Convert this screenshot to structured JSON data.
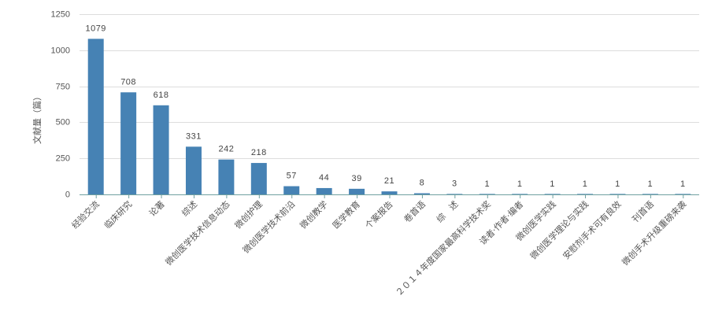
{
  "chart_data": {
    "type": "bar",
    "title": "",
    "xlabel": "",
    "ylabel": "文献量（篇）",
    "ylim": [
      0,
      1250
    ],
    "yticks": [
      0,
      250,
      500,
      750,
      1000,
      1250
    ],
    "grid": true,
    "legend": "none",
    "bar_color": "#4682b4",
    "categories": [
      "经验交流",
      "临床研究",
      "论著",
      "综述",
      "微创医学技术信息动态",
      "微创护理",
      "微创医学技术前沿",
      "微创教学",
      "医学教育",
      "个案报告",
      "卷首语",
      "综　述",
      "２０１４年度国家最高科学技术奖",
      "读者·作者·编者",
      "微创医学实践",
      "微创医学理论与实践",
      "安慰剂手术可有良效",
      "刊首语",
      "微创手术升级重磅来袭"
    ],
    "values": [
      1079,
      708,
      618,
      331,
      242,
      218,
      57,
      44,
      39,
      21,
      8,
      3,
      1,
      1,
      1,
      1,
      1,
      1,
      1
    ]
  }
}
